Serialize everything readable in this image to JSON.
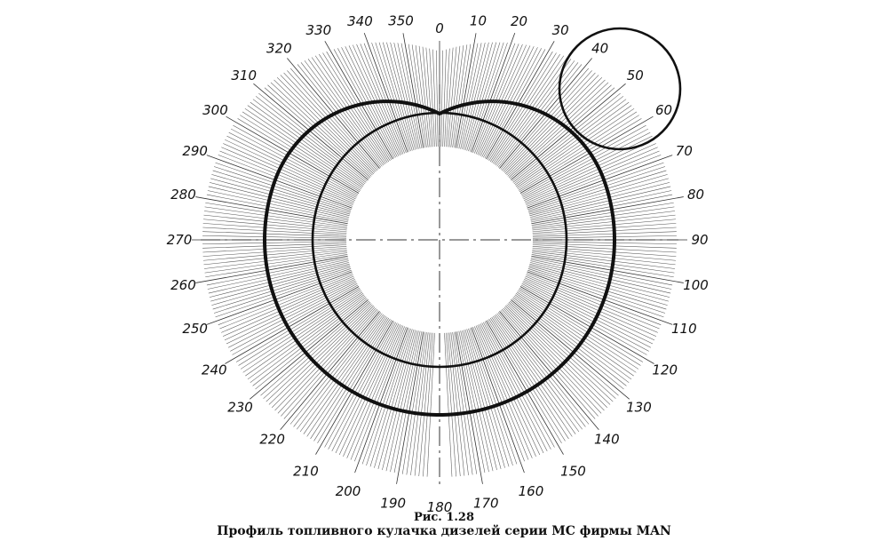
{
  "figure": {
    "number": "Рис. 1.28",
    "title": "Профиль топливного кулачка дизелей серии МС фирмы MAN",
    "angle_labels": [
      "0",
      "10",
      "20",
      "30",
      "40",
      "50",
      "60",
      "70",
      "80",
      "90",
      "100",
      "110",
      "120",
      "130",
      "140",
      "150",
      "160",
      "170",
      "180",
      "190",
      "200",
      "210",
      "220",
      "230",
      "240",
      "250",
      "260",
      "270",
      "280",
      "290",
      "300",
      "310",
      "320",
      "330",
      "340",
      "350"
    ],
    "hatch_step_deg": 1,
    "colors": {
      "ink": "#111111",
      "hatch": "#555555"
    }
  }
}
